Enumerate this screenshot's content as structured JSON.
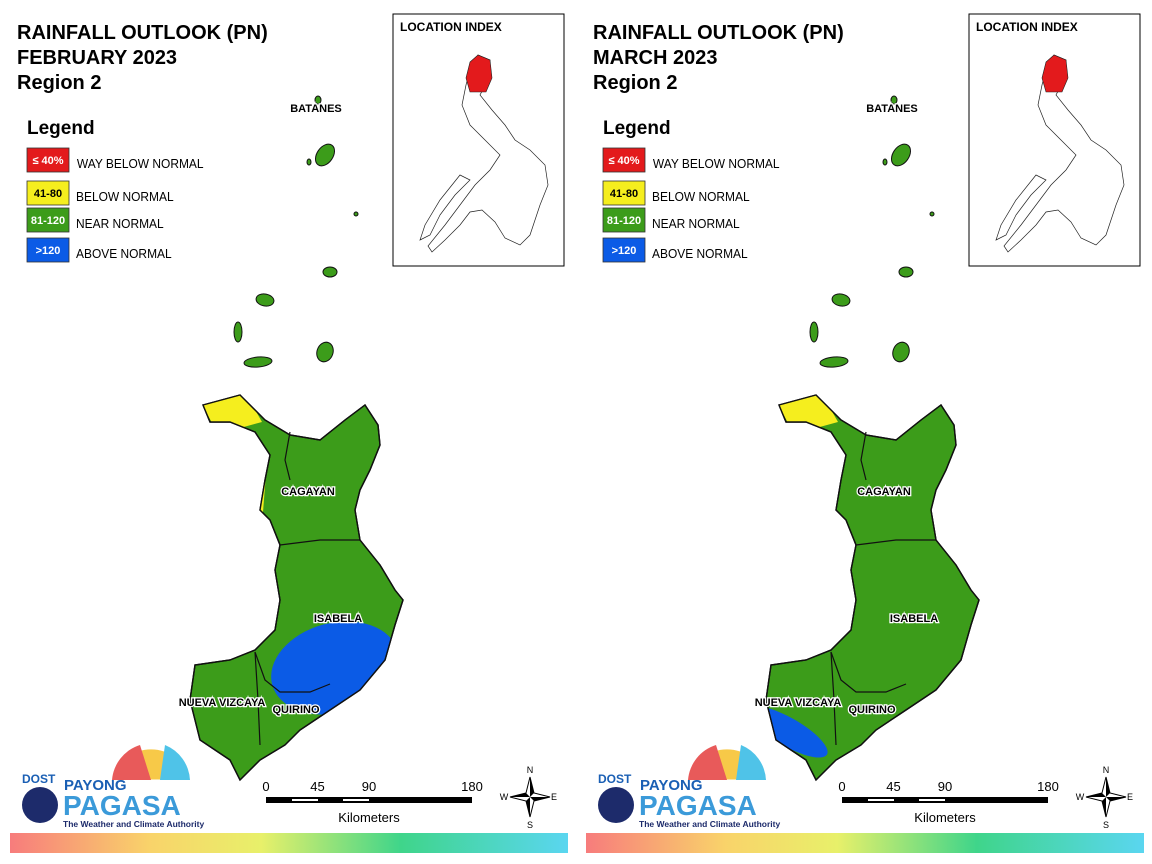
{
  "panels": [
    {
      "title": [
        "RAINFALL OUTLOOK (PN)",
        "FEBRUARY 2023",
        "Region 2"
      ],
      "legend_title": "Legend",
      "legend": [
        {
          "label": "≤ 40%",
          "text": "WAY BELOW NORMAL",
          "color": "#e31a1c"
        },
        {
          "label": "41-80",
          "text": "BELOW NORMAL",
          "color": "#f5ee1e"
        },
        {
          "label": "81-120",
          "text": "NEAR NORMAL",
          "color": "#3c9c1a"
        },
        {
          "label": ">120",
          "text": "ABOVE NORMAL",
          "color": "#0b5be6"
        }
      ],
      "index_title": "LOCATION INDEX",
      "provinces": [
        "BATANES",
        "CAGAYAN",
        "ISABELA",
        "NUEVA VIZCAYA",
        "QUIRINO"
      ],
      "scale": {
        "ticks": [
          0,
          45,
          90,
          180
        ],
        "unit": "Kilometers"
      },
      "compass": [
        "N",
        "E",
        "S",
        "W"
      ],
      "logo": {
        "dost": "DOST",
        "payong": "PAYONG",
        "pagasa": "PAGASA",
        "tagline": "The Weather and Climate Authority"
      }
    },
    {
      "title": [
        "RAINFALL OUTLOOK (PN)",
        "MARCH 2023",
        "Region 2"
      ],
      "legend_title": "Legend",
      "legend": [
        {
          "label": "≤ 40%",
          "text": "WAY BELOW NORMAL",
          "color": "#e31a1c"
        },
        {
          "label": "41-80",
          "text": "BELOW NORMAL",
          "color": "#f5ee1e"
        },
        {
          "label": "81-120",
          "text": "NEAR NORMAL",
          "color": "#3c9c1a"
        },
        {
          "label": ">120",
          "text": "ABOVE NORMAL",
          "color": "#0b5be6"
        }
      ],
      "index_title": "LOCATION INDEX",
      "provinces": [
        "BATANES",
        "CAGAYAN",
        "ISABELA",
        "NUEVA VIZCAYA",
        "QUIRINO"
      ],
      "scale": {
        "ticks": [
          0,
          45,
          90,
          180
        ],
        "unit": "Kilometers"
      },
      "compass": [
        "N",
        "E",
        "S",
        "W"
      ],
      "logo": {
        "dost": "DOST",
        "payong": "PAYONG",
        "pagasa": "PAGASA",
        "tagline": "The Weather and Climate Authority"
      }
    }
  ]
}
